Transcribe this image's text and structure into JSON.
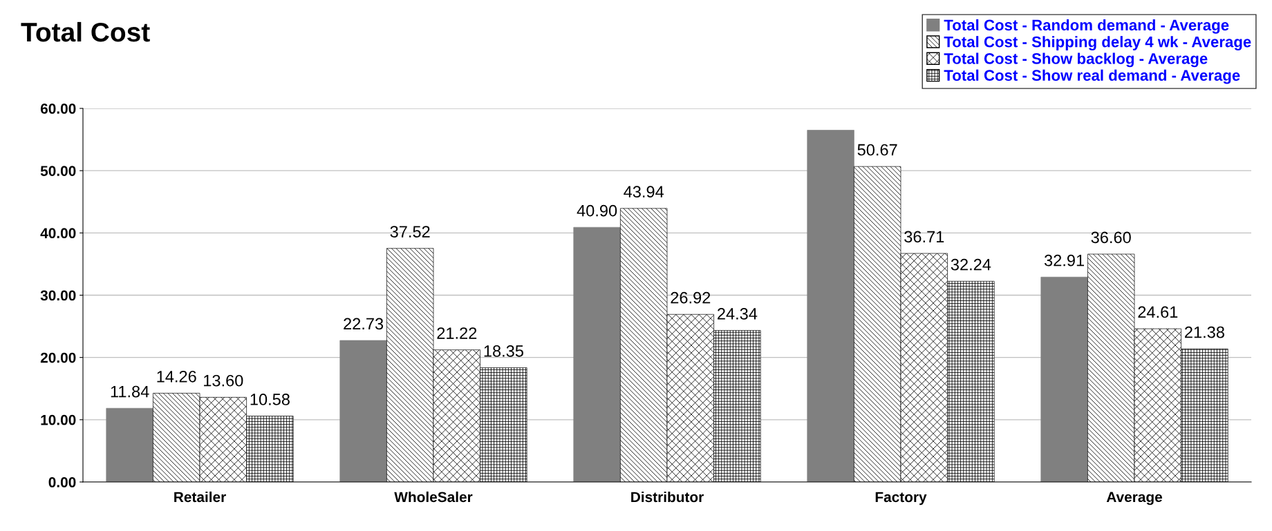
{
  "chart_data": {
    "type": "bar",
    "title": "Total Cost",
    "categories": [
      "Retailer",
      "WholeSaler",
      "Distributor",
      "Factory",
      "Average"
    ],
    "series": [
      {
        "name": "Total Cost - Random demand - Average",
        "color": "#808080",
        "values": [
          11.84,
          22.73,
          40.9,
          56.5,
          32.91
        ],
        "value_labels": [
          "11.84",
          "22.73",
          "40.90",
          null,
          "32.91"
        ]
      },
      {
        "name": "Total Cost - Shipping delay 4 wk - Average",
        "color": "#000000",
        "values": [
          14.26,
          37.52,
          43.94,
          50.67,
          36.6
        ],
        "value_labels": [
          "14.26",
          "37.52",
          "43.94",
          "50.67",
          "36.60"
        ]
      },
      {
        "name": "Total Cost - Show backlog - Average",
        "color": "#000000",
        "values": [
          13.6,
          21.22,
          26.92,
          36.71,
          24.61
        ],
        "value_labels": [
          "13.60",
          "21.22",
          "26.92",
          "36.71",
          "24.61"
        ]
      },
      {
        "name": "Total Cost - Show real demand - Average",
        "color": "#000000",
        "values": [
          10.58,
          18.35,
          24.34,
          32.24,
          21.38
        ],
        "value_labels": [
          "10.58",
          "18.35",
          "24.34",
          "32.24",
          "21.38"
        ]
      }
    ],
    "ylim": [
      0,
      60
    ],
    "yticks": [
      {
        "value": 0,
        "label": "0.00"
      },
      {
        "value": 10,
        "label": "10.00"
      },
      {
        "value": 20,
        "label": "20.00"
      },
      {
        "value": 30,
        "label": "30.00"
      },
      {
        "value": 40,
        "label": "40.00"
      },
      {
        "value": 50,
        "label": "50.00"
      },
      {
        "value": 60,
        "label": "60.00"
      }
    ],
    "grid": "y",
    "legend": "top right"
  }
}
